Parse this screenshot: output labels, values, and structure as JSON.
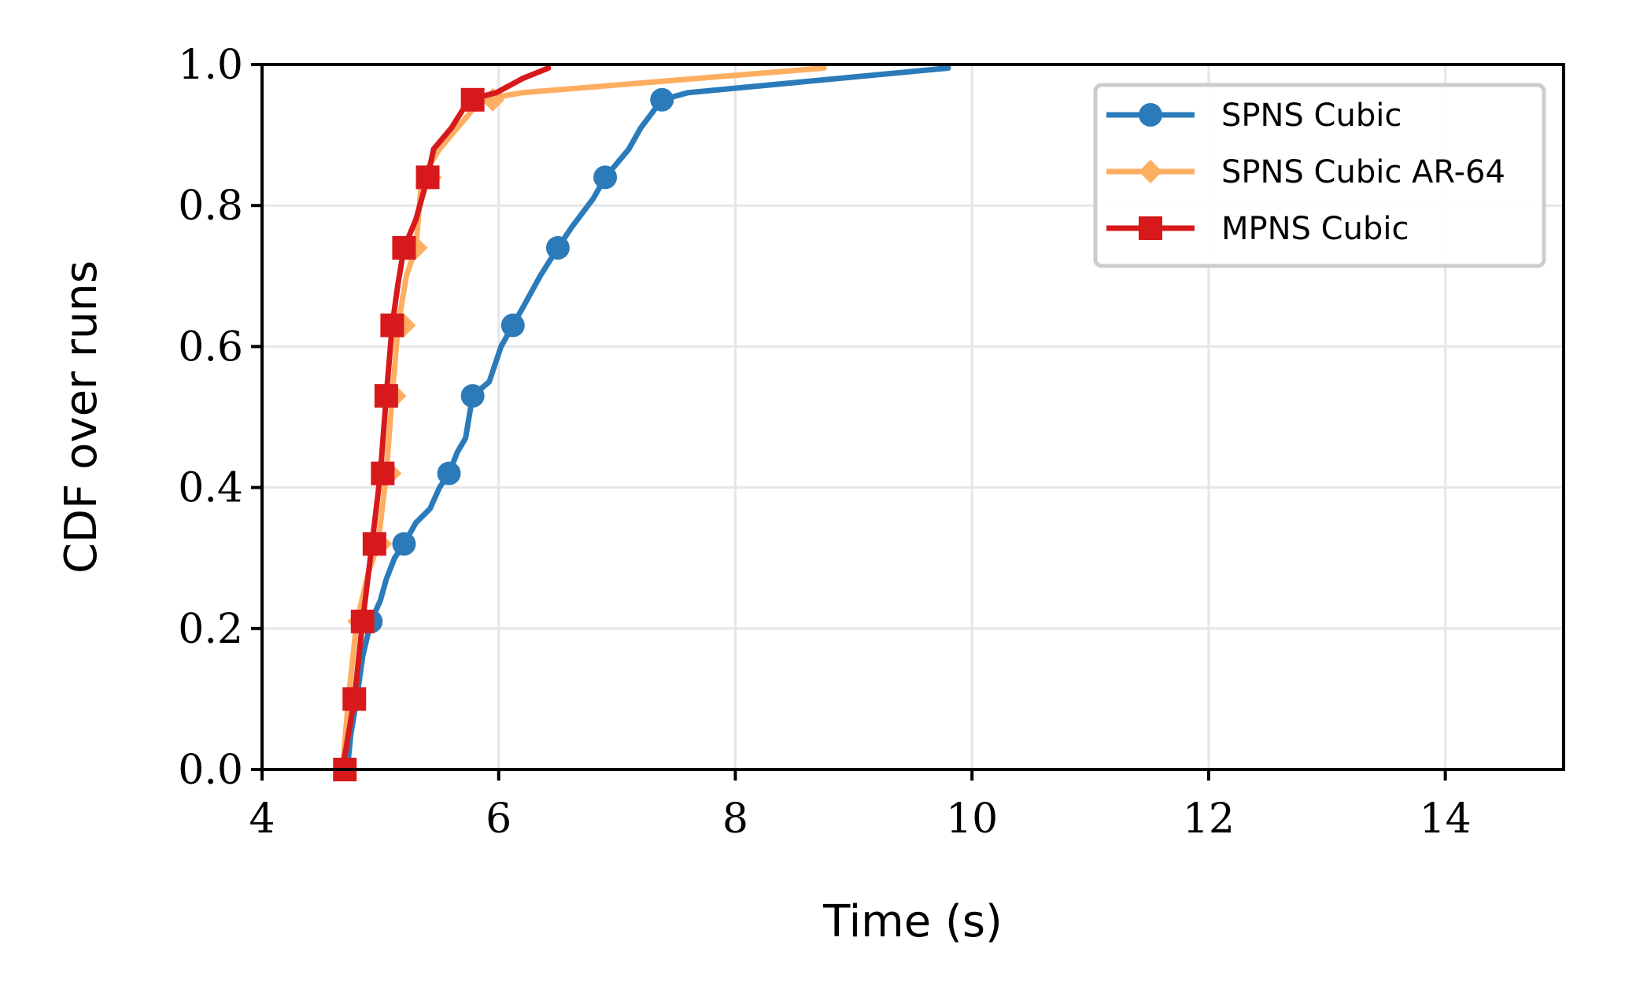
{
  "chart_data": {
    "type": "line",
    "title": "",
    "xlabel": "Time (s)",
    "ylabel": "CDF over runs",
    "xlim": [
      4,
      15
    ],
    "ylim": [
      0,
      1.0
    ],
    "xticks": [
      "4",
      "6",
      "8",
      "10",
      "12",
      "14"
    ],
    "yticks": [
      "0.0",
      "0.2",
      "0.4",
      "0.6",
      "0.8",
      "1.0"
    ],
    "grid": true,
    "legend_position": "top-right",
    "series": [
      {
        "name": "SPNS Cubic",
        "color": "#2b7bba",
        "marker": "circle",
        "points": [
          [
            4.72,
            0.0
          ],
          [
            4.75,
            0.05
          ],
          [
            4.8,
            0.1
          ],
          [
            4.85,
            0.16
          ],
          [
            4.92,
            0.21
          ],
          [
            5.0,
            0.24
          ],
          [
            5.05,
            0.27
          ],
          [
            5.12,
            0.3
          ],
          [
            5.2,
            0.32
          ],
          [
            5.3,
            0.35
          ],
          [
            5.42,
            0.37
          ],
          [
            5.5,
            0.4
          ],
          [
            5.58,
            0.42
          ],
          [
            5.65,
            0.45
          ],
          [
            5.72,
            0.47
          ],
          [
            5.78,
            0.53
          ],
          [
            5.92,
            0.55
          ],
          [
            6.02,
            0.6
          ],
          [
            6.12,
            0.63
          ],
          [
            6.22,
            0.66
          ],
          [
            6.35,
            0.7
          ],
          [
            6.5,
            0.74
          ],
          [
            6.62,
            0.77
          ],
          [
            6.8,
            0.81
          ],
          [
            6.9,
            0.84
          ],
          [
            7.1,
            0.88
          ],
          [
            7.2,
            0.91
          ],
          [
            7.38,
            0.95
          ],
          [
            7.6,
            0.96
          ],
          [
            9.8,
            0.995
          ]
        ],
        "marker_points": [
          [
            4.92,
            0.21
          ],
          [
            5.2,
            0.32
          ],
          [
            5.58,
            0.42
          ],
          [
            5.78,
            0.53
          ],
          [
            6.12,
            0.63
          ],
          [
            6.5,
            0.74
          ],
          [
            6.9,
            0.84
          ],
          [
            7.38,
            0.95
          ]
        ]
      },
      {
        "name": "SPNS Cubic AR-64",
        "color": "#fdae61",
        "marker": "diamond",
        "points": [
          [
            4.68,
            0.0
          ],
          [
            4.73,
            0.1
          ],
          [
            4.8,
            0.21
          ],
          [
            4.9,
            0.28
          ],
          [
            4.98,
            0.32
          ],
          [
            5.05,
            0.42
          ],
          [
            5.1,
            0.53
          ],
          [
            5.15,
            0.63
          ],
          [
            5.22,
            0.7
          ],
          [
            5.3,
            0.74
          ],
          [
            5.35,
            0.84
          ],
          [
            5.5,
            0.88
          ],
          [
            5.7,
            0.92
          ],
          [
            5.85,
            0.95
          ],
          [
            6.2,
            0.96
          ],
          [
            8.75,
            0.995
          ]
        ],
        "marker_points": [
          [
            4.78,
            0.1
          ],
          [
            4.82,
            0.21
          ],
          [
            5.0,
            0.32
          ],
          [
            5.08,
            0.42
          ],
          [
            5.12,
            0.53
          ],
          [
            5.2,
            0.63
          ],
          [
            5.3,
            0.74
          ],
          [
            5.42,
            0.84
          ],
          [
            5.95,
            0.95
          ]
        ]
      },
      {
        "name": "MPNS Cubic",
        "color": "#d7191c",
        "marker": "square",
        "points": [
          [
            4.68,
            0.0
          ],
          [
            4.78,
            0.1
          ],
          [
            4.85,
            0.21
          ],
          [
            4.93,
            0.32
          ],
          [
            5.0,
            0.42
          ],
          [
            5.05,
            0.53
          ],
          [
            5.1,
            0.63
          ],
          [
            5.15,
            0.69
          ],
          [
            5.2,
            0.74
          ],
          [
            5.3,
            0.78
          ],
          [
            5.4,
            0.84
          ],
          [
            5.45,
            0.88
          ],
          [
            5.6,
            0.91
          ],
          [
            5.75,
            0.95
          ],
          [
            5.98,
            0.96
          ],
          [
            6.2,
            0.98
          ],
          [
            6.42,
            0.995
          ]
        ],
        "marker_points": [
          [
            4.7,
            0.0
          ],
          [
            4.78,
            0.1
          ],
          [
            4.85,
            0.21
          ],
          [
            4.95,
            0.32
          ],
          [
            5.02,
            0.42
          ],
          [
            5.05,
            0.53
          ],
          [
            5.1,
            0.63
          ],
          [
            5.2,
            0.74
          ],
          [
            5.4,
            0.84
          ],
          [
            5.78,
            0.95
          ]
        ]
      }
    ]
  }
}
